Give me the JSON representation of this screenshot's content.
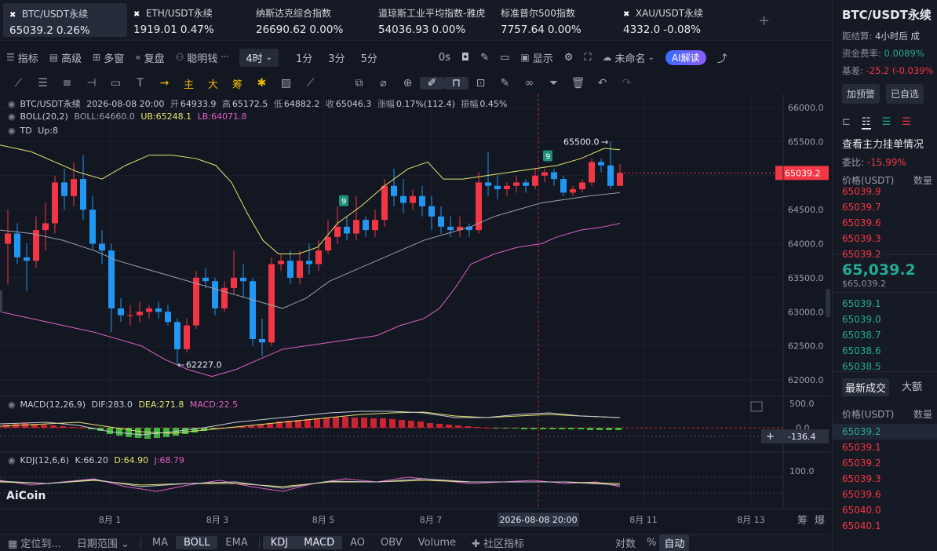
{
  "tickers": [
    {
      "name": "BTC/USDT永续",
      "price": "65039.2",
      "change": "0.26%",
      "active": true,
      "icon": "x-logo-icon"
    },
    {
      "name": "ETH/USDT永续",
      "price": "1919.01",
      "change": "0.47%",
      "active": false,
      "icon": "x-logo-icon"
    },
    {
      "name": "纳斯达克综合指数",
      "price": "26690.62",
      "change": "0.00%",
      "active": false,
      "icon": ""
    },
    {
      "name": "道琼斯工业平均指数-雅虎",
      "price": "54036.93",
      "change": "0.00%",
      "active": false,
      "icon": ""
    },
    {
      "name": "标准普尔500指数",
      "price": "7757.64",
      "change": "0.00%",
      "active": false,
      "icon": ""
    },
    {
      "name": "XAU/USDT永续",
      "price": "4332.0",
      "change": "-0.08%",
      "active": false,
      "icon": "x-logo-icon"
    }
  ],
  "toolbar1": {
    "indicators": "指标",
    "advanced": "高级",
    "multi": "多窗",
    "replay": "复盘",
    "smart": "聪明钱",
    "timeframe": "4时",
    "tf_1m": "1分",
    "tf_3m": "3分",
    "tf_5m": "5分",
    "zero_s": "0s",
    "display": "显示",
    "unnamed": "未命名",
    "ai": "AI解读"
  },
  "toolbar2": {
    "zhu": "主",
    "da": "大",
    "chou": "筹"
  },
  "legend": {
    "symbol": "BTC/USDT永续",
    "datetime": "2026-08-08 20:00",
    "open_label": "开",
    "open": "64933.9",
    "high_label": "高",
    "high": "65172.5",
    "low_label": "低",
    "low": "64882.2",
    "close_label": "收",
    "close": "65046.3",
    "chg_label": "涨幅",
    "chg": "0.17%(112.4)",
    "amp_label": "振幅",
    "amp": "0.45%",
    "boll_name": "BOLL(20,2)",
    "boll_mid": "BOLL:64660.0",
    "boll_ub": "UB:65248.1",
    "boll_lb": "LB:64071.8",
    "td_name": "TD",
    "td_up": "Up:8",
    "macd_name": "MACD(12,26,9)",
    "macd_dif": "DIF:283.0",
    "macd_dea": "DEA:271.8",
    "macd_val": "MACD:22.5",
    "kdj_name": "KDJ(12,6,6)",
    "kdj_k": "K:66.20",
    "kdj_d": "D:64.90",
    "kdj_j": "J:68.79"
  },
  "chart": {
    "price_axis": [
      "66000.0",
      "65500.0",
      "65000.0",
      "64500.0",
      "64000.0",
      "63500.0",
      "63000.0",
      "62500.0",
      "62000.0"
    ],
    "current_price": "65039.2",
    "high_label": "65500.0",
    "low_label": "62227.0",
    "td_marker": "9",
    "macd_axis_top": "500.0",
    "macd_axis_zero": "0.0",
    "macd_crosshair": "-136.4",
    "kdj_axis_top": "100.0",
    "date_labels": [
      "8月 1",
      "8月 3",
      "8月 5",
      "8月 7",
      "8月 11",
      "8月 13"
    ],
    "crosshair_date": "2026-08-08 20:00",
    "brand": "AiCoin",
    "corner_labels": [
      "筹",
      "爆"
    ],
    "colors": {
      "up": "#f23645",
      "down": "#2196f3",
      "boll_ub": "#e8e26c",
      "boll_lb": "#e25fc6",
      "boll_mid": "#9aa0ad",
      "macd_pos": "#c9242f",
      "macd_neg": "#3fb73b"
    }
  },
  "bottom": {
    "locate": "定位到...",
    "date_range": "日期范围",
    "indicators": [
      "MA",
      "BOLL",
      "EMA",
      "KDJ",
      "MACD",
      "AO",
      "OBV",
      "Volume"
    ],
    "community": "社区指标",
    "log": "对数",
    "pct": "%",
    "auto": "自动"
  },
  "rpanel": {
    "symbol": "BTC/USDT永续",
    "settle_label": "距结算:",
    "settle_val": "4小时后",
    "settle_extra": "成",
    "funding_label": "资金费率:",
    "funding_val": "0.0089%",
    "basis_label": "基差:",
    "basis_val": "-25.2 (-0.039%",
    "btn_alert": "加预警",
    "btn_fav": "已自选",
    "orderbook_title": "查看主力挂单情况",
    "ratio_label": "委比:",
    "ratio_val": "-15.99%",
    "col_price": "价格(USDT)",
    "col_qty": "数量",
    "asks": [
      "65039.9",
      "65039.7",
      "65039.6",
      "65039.3",
      "65039.2"
    ],
    "last_price": "65,039.2",
    "last_price_usd": "$65,039.2",
    "bids": [
      "65039.1",
      "65039.0",
      "65038.7",
      "65038.6",
      "65038.5"
    ],
    "tab_trades": "最新成交",
    "tab_large": "大额",
    "trades": [
      "65039.2",
      "65039.1",
      "65039.2",
      "65039.3",
      "65039.6",
      "65040.0",
      "65040.1"
    ]
  }
}
